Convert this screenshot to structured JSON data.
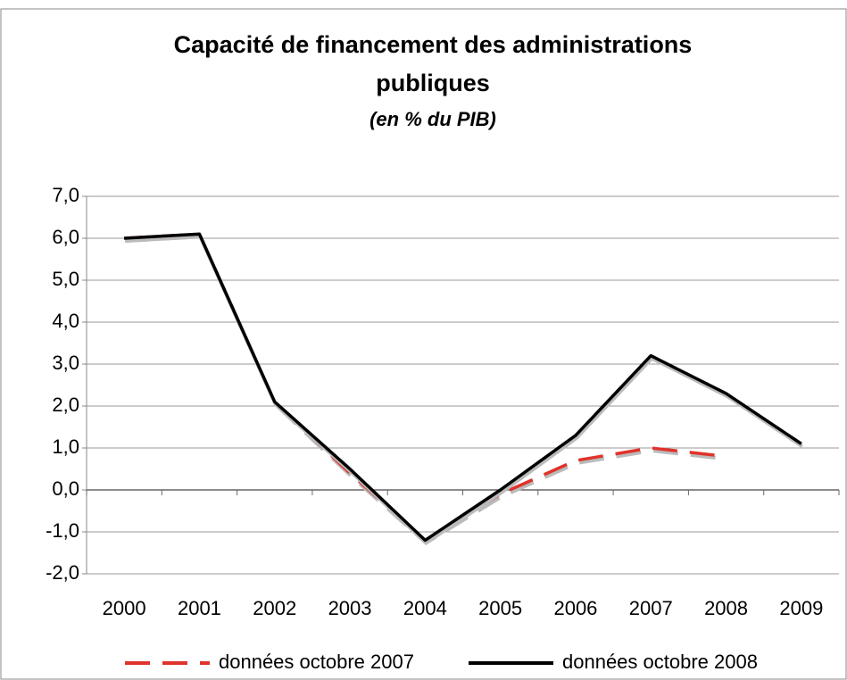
{
  "chart_data": {
    "type": "line",
    "title": [
      "Capacité de financement des administrations",
      "publiques"
    ],
    "subtitle": "(en % du PIB)",
    "categories": [
      "2000",
      "2001",
      "2002",
      "2003",
      "2004",
      "2005",
      "2006",
      "2007",
      "2008",
      "2009"
    ],
    "series": [
      {
        "name": "données octobre 2007",
        "color": "#e0332b",
        "dash": true,
        "values": [
          6.0,
          6.1,
          2.1,
          0.4,
          -1.2,
          -0.1,
          0.7,
          1.0,
          0.8,
          null
        ]
      },
      {
        "name": "données octobre 2008",
        "color": "#000000",
        "dash": false,
        "values": [
          6.0,
          6.1,
          2.1,
          0.5,
          -1.2,
          0.0,
          1.3,
          3.2,
          2.3,
          1.1
        ]
      }
    ],
    "ylim": [
      -2,
      7
    ],
    "yticks": [
      {
        "value": -2,
        "label": "-2,0"
      },
      {
        "value": -1,
        "label": "-1,0"
      },
      {
        "value": 0,
        "label": "0,0"
      },
      {
        "value": 1,
        "label": "1,0"
      },
      {
        "value": 2,
        "label": "2,0"
      },
      {
        "value": 3,
        "label": "3,0"
      },
      {
        "value": 4,
        "label": "4,0"
      },
      {
        "value": 5,
        "label": "5,0"
      },
      {
        "value": 6,
        "label": "6,0"
      },
      {
        "value": 7,
        "label": "7,0"
      }
    ],
    "grid": true,
    "legend": "bottom"
  }
}
